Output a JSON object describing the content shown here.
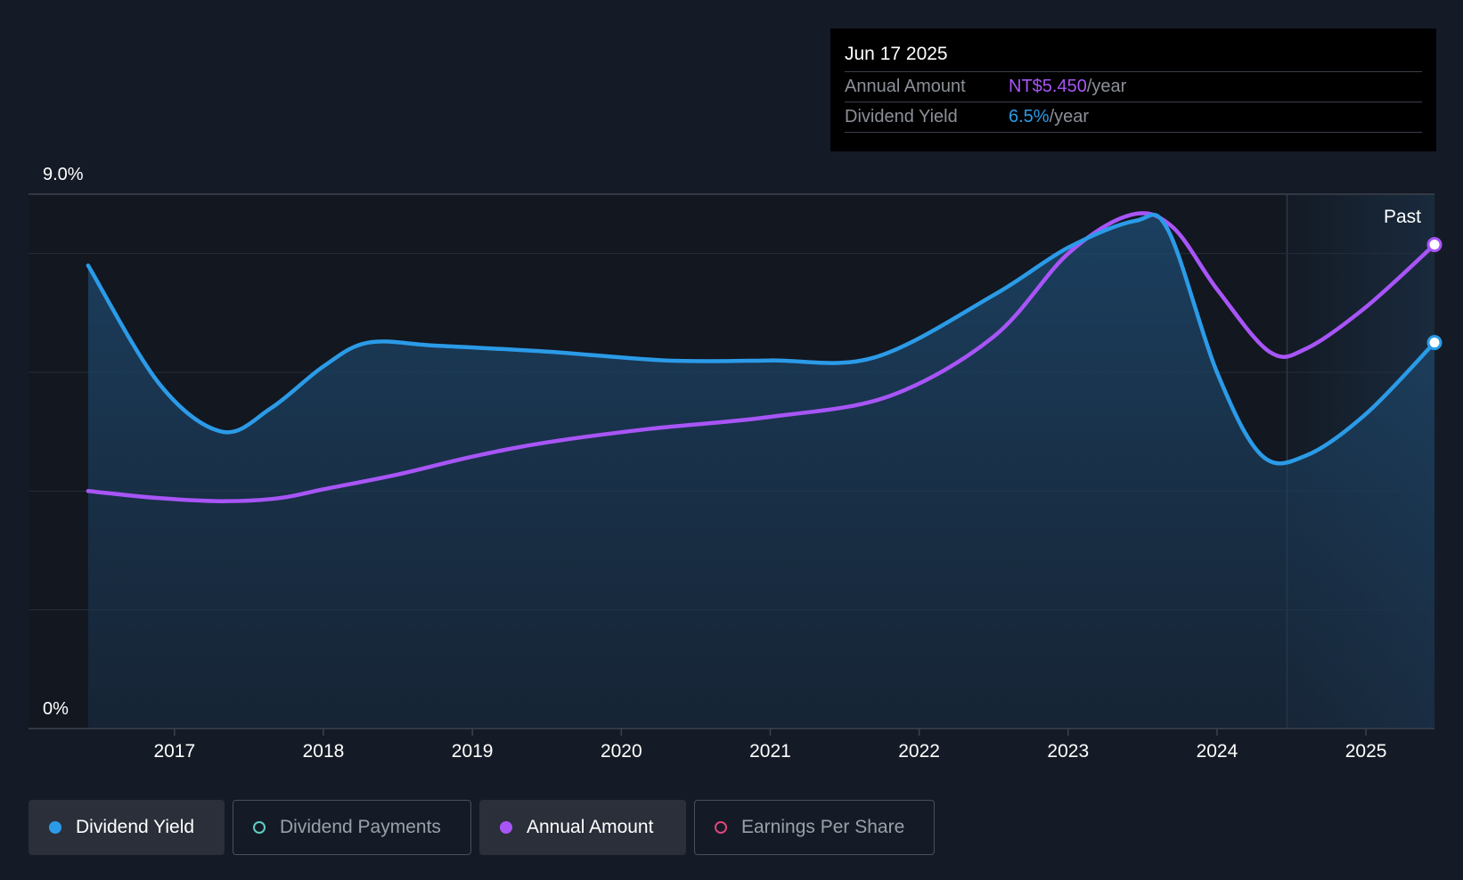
{
  "tooltip": {
    "date": "Jun 17 2025",
    "rows": [
      {
        "label": "Annual Amount",
        "value": "NT$5.450",
        "unit": "/year",
        "color": "#a855f7"
      },
      {
        "label": "Dividend Yield",
        "value": "6.5%",
        "unit": "/year",
        "color": "#2b9be8"
      }
    ]
  },
  "legend": [
    {
      "label": "Dividend Yield",
      "active": true,
      "filled": true,
      "color": "#2b9be8"
    },
    {
      "label": "Dividend Payments",
      "active": false,
      "filled": false,
      "color": "#5ecfc3"
    },
    {
      "label": "Annual Amount",
      "active": true,
      "filled": true,
      "color": "#a855f7"
    },
    {
      "label": "Earnings Per Share",
      "active": false,
      "filled": false,
      "color": "#e0457b"
    }
  ],
  "chart_data": {
    "type": "line",
    "title": "",
    "xlabel": "",
    "ylabel": "",
    "y_axis_labels": {
      "top": "9.0%",
      "bottom": "0%"
    },
    "ylim": [
      0,
      9.0
    ],
    "xlim": [
      2016.02,
      2025.46
    ],
    "x_ticks": [
      2017,
      2018,
      2019,
      2020,
      2021,
      2022,
      2023,
      2024,
      2025
    ],
    "past_label": "Past",
    "past_start": 2024.47,
    "series": [
      {
        "name": "Dividend Yield",
        "color": "#2b9be8",
        "area": true,
        "points": [
          [
            2016.42,
            7.8
          ],
          [
            2016.9,
            5.8
          ],
          [
            2017.32,
            5.0
          ],
          [
            2017.65,
            5.4
          ],
          [
            2018.0,
            6.1
          ],
          [
            2018.3,
            6.5
          ],
          [
            2018.75,
            6.45
          ],
          [
            2019.5,
            6.35
          ],
          [
            2020.3,
            6.2
          ],
          [
            2021.0,
            6.2
          ],
          [
            2021.7,
            6.25
          ],
          [
            2022.5,
            7.3
          ],
          [
            2023.0,
            8.1
          ],
          [
            2023.45,
            8.55
          ],
          [
            2023.67,
            8.4
          ],
          [
            2024.0,
            6.0
          ],
          [
            2024.3,
            4.6
          ],
          [
            2024.6,
            4.6
          ],
          [
            2025.0,
            5.3
          ],
          [
            2025.46,
            6.5
          ]
        ]
      },
      {
        "name": "Annual Amount",
        "color": "#a855f7",
        "area": false,
        "points": [
          [
            2016.42,
            4.0
          ],
          [
            2016.9,
            3.88
          ],
          [
            2017.32,
            3.83
          ],
          [
            2017.7,
            3.88
          ],
          [
            2018.0,
            4.03
          ],
          [
            2018.5,
            4.28
          ],
          [
            2019.0,
            4.58
          ],
          [
            2019.5,
            4.82
          ],
          [
            2020.2,
            5.05
          ],
          [
            2021.0,
            5.25
          ],
          [
            2021.8,
            5.6
          ],
          [
            2022.5,
            6.6
          ],
          [
            2023.0,
            8.0
          ],
          [
            2023.42,
            8.65
          ],
          [
            2023.7,
            8.45
          ],
          [
            2024.0,
            7.4
          ],
          [
            2024.35,
            6.35
          ],
          [
            2024.6,
            6.4
          ],
          [
            2025.0,
            7.1
          ],
          [
            2025.46,
            8.15
          ]
        ]
      }
    ]
  }
}
